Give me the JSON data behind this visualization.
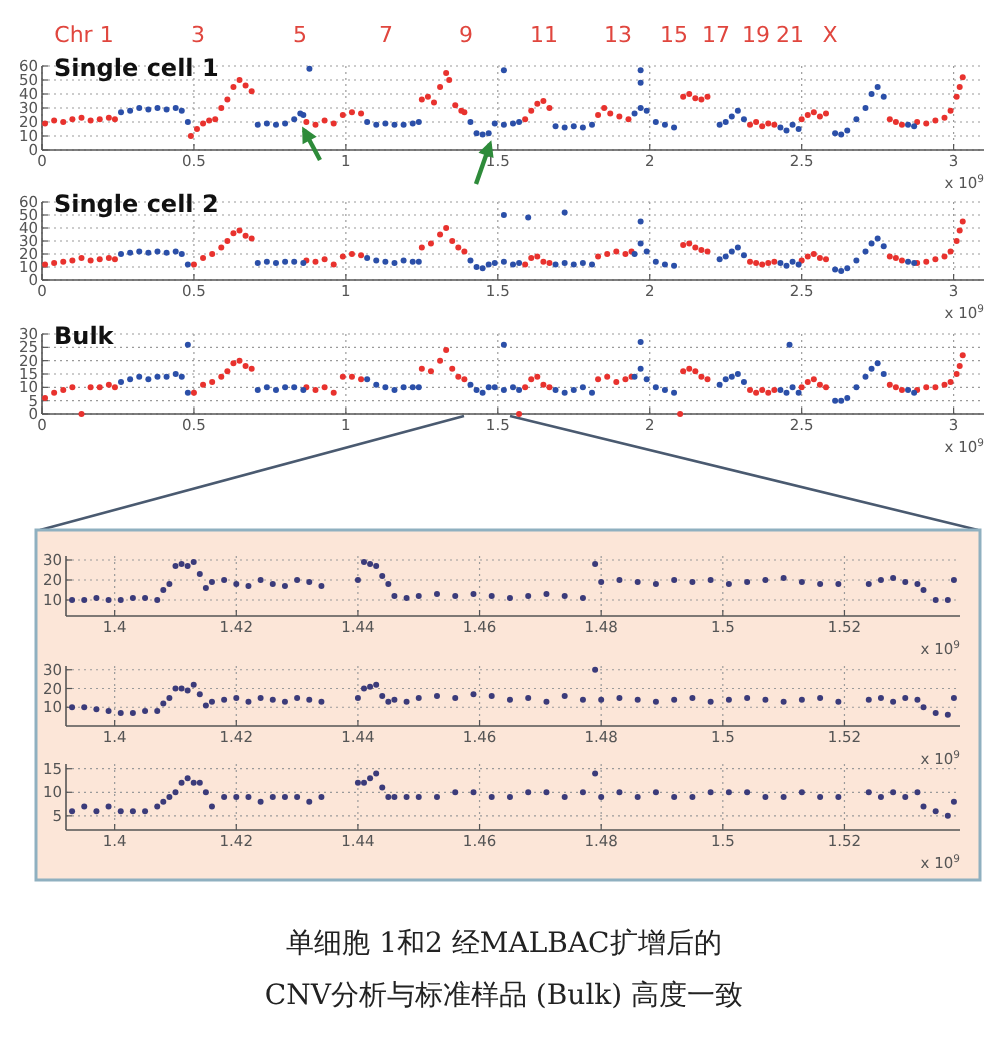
{
  "chart_data": [
    {
      "type": "scatter",
      "title": "Single cell 1",
      "xlabel": "x 10$^{9}$",
      "xlim": [
        0,
        3.1
      ],
      "xticks": [
        0,
        0.5,
        1,
        1.5,
        2,
        2.5,
        3
      ],
      "ylim": [
        0,
        60
      ],
      "yticks": [
        0,
        10,
        20,
        30,
        40,
        50,
        60
      ],
      "grid": true,
      "marker": "circle",
      "annotations": [
        "Chr 1",
        "3",
        "5",
        "7",
        "9",
        "11",
        "13",
        "15",
        "17",
        "19",
        "21",
        "X"
      ],
      "series": [
        {
          "color": "#e8322e",
          "x": [
            0.01,
            0.04,
            0.07,
            0.1,
            0.13,
            0.16,
            0.19,
            0.22,
            0.24,
            0.49,
            0.51,
            0.53,
            0.55,
            0.57,
            0.59,
            0.61,
            0.63,
            0.65,
            0.67,
            0.69,
            0.87,
            0.9,
            0.93,
            0.96,
            0.99,
            1.02,
            1.05,
            1.25,
            1.27,
            1.29,
            1.31,
            1.33,
            1.34,
            1.36,
            1.38,
            1.39,
            1.59,
            1.61,
            1.63,
            1.65,
            1.67,
            1.83,
            1.85,
            1.87,
            1.9,
            1.93,
            2.11,
            2.13,
            2.15,
            2.17,
            2.19,
            2.33,
            2.35,
            2.37,
            2.39,
            2.41,
            2.5,
            2.52,
            2.54,
            2.56,
            2.58,
            2.79,
            2.81,
            2.83,
            2.88,
            2.91,
            2.94,
            2.97,
            2.99,
            3.01,
            3.02,
            3.03
          ],
          "values": [
            19,
            21,
            20,
            22,
            23,
            21,
            22,
            23,
            22,
            10,
            15,
            19,
            21,
            22,
            30,
            36,
            45,
            50,
            46,
            42,
            20,
            18,
            21,
            19,
            25,
            27,
            26,
            36,
            38,
            34,
            45,
            55,
            50,
            32,
            28,
            27,
            22,
            28,
            33,
            35,
            30,
            25,
            30,
            26,
            24,
            22,
            38,
            40,
            37,
            36,
            38,
            18,
            20,
            17,
            19,
            18,
            22,
            25,
            27,
            24,
            26,
            22,
            20,
            18,
            20,
            19,
            21,
            23,
            28,
            38,
            45,
            52
          ]
        },
        {
          "color": "#2b4fa8",
          "x": [
            0.26,
            0.29,
            0.32,
            0.35,
            0.38,
            0.41,
            0.44,
            0.46,
            0.48,
            0.71,
            0.74,
            0.77,
            0.8,
            0.83,
            0.85,
            0.86,
            0.88,
            1.07,
            1.1,
            1.13,
            1.16,
            1.19,
            1.22,
            1.24,
            1.41,
            1.43,
            1.45,
            1.47,
            1.49,
            1.52,
            1.52,
            1.55,
            1.57,
            1.69,
            1.72,
            1.75,
            1.78,
            1.81,
            1.95,
            1.97,
            1.97,
            1.97,
            1.99,
            2.02,
            2.05,
            2.08,
            2.23,
            2.25,
            2.27,
            2.29,
            2.31,
            2.43,
            2.45,
            2.47,
            2.49,
            2.61,
            2.63,
            2.65,
            2.68,
            2.71,
            2.73,
            2.75,
            2.77,
            2.85,
            2.87
          ],
          "values": [
            27,
            28,
            30,
            29,
            30,
            29,
            30,
            28,
            20,
            18,
            19,
            18,
            19,
            22,
            26,
            25,
            58,
            20,
            18,
            19,
            18,
            18,
            19,
            20,
            20,
            12,
            11,
            12,
            19,
            18,
            57,
            19,
            20,
            17,
            16,
            17,
            16,
            18,
            26,
            30,
            48,
            57,
            28,
            20,
            18,
            16,
            18,
            20,
            24,
            28,
            22,
            16,
            14,
            18,
            15,
            12,
            11,
            14,
            22,
            30,
            40,
            45,
            38,
            18,
            17
          ]
        }
      ]
    },
    {
      "type": "scatter",
      "title": "Single cell 2",
      "xlabel": "x 10$^{9}$",
      "xlim": [
        0,
        3.1
      ],
      "xticks": [
        0,
        0.5,
        1,
        1.5,
        2,
        2.5,
        3
      ],
      "ylim": [
        0,
        60
      ],
      "yticks": [
        0,
        10,
        20,
        30,
        40,
        50,
        60
      ],
      "grid": true,
      "marker": "circle",
      "series": [
        {
          "color": "#e8322e",
          "x": [
            0.01,
            0.04,
            0.07,
            0.1,
            0.13,
            0.16,
            0.19,
            0.22,
            0.24,
            0.5,
            0.53,
            0.56,
            0.59,
            0.61,
            0.63,
            0.65,
            0.67,
            0.69,
            0.87,
            0.9,
            0.93,
            0.96,
            0.99,
            1.02,
            1.05,
            1.25,
            1.28,
            1.31,
            1.33,
            1.35,
            1.37,
            1.39,
            1.59,
            1.61,
            1.63,
            1.65,
            1.67,
            1.83,
            1.86,
            1.89,
            1.92,
            1.94,
            2.11,
            2.13,
            2.15,
            2.17,
            2.19,
            2.33,
            2.35,
            2.37,
            2.39,
            2.41,
            2.5,
            2.52,
            2.54,
            2.56,
            2.58,
            2.79,
            2.81,
            2.83,
            2.88,
            2.91,
            2.94,
            2.97,
            2.99,
            3.01,
            3.02,
            3.03
          ],
          "values": [
            12,
            13,
            14,
            15,
            17,
            15,
            16,
            17,
            16,
            12,
            17,
            20,
            25,
            30,
            36,
            38,
            34,
            32,
            15,
            14,
            16,
            12,
            18,
            20,
            19,
            25,
            28,
            35,
            40,
            30,
            25,
            22,
            12,
            17,
            18,
            14,
            13,
            18,
            20,
            22,
            20,
            22,
            27,
            28,
            25,
            23,
            22,
            14,
            13,
            12,
            13,
            14,
            15,
            18,
            20,
            17,
            16,
            18,
            17,
            15,
            13,
            14,
            16,
            18,
            22,
            30,
            38,
            45
          ]
        },
        {
          "color": "#2b4fa8",
          "x": [
            0.26,
            0.29,
            0.32,
            0.35,
            0.38,
            0.41,
            0.44,
            0.46,
            0.48,
            0.71,
            0.74,
            0.77,
            0.8,
            0.83,
            0.86,
            1.07,
            1.1,
            1.13,
            1.16,
            1.19,
            1.22,
            1.24,
            1.41,
            1.43,
            1.45,
            1.47,
            1.49,
            1.52,
            1.52,
            1.55,
            1.57,
            1.6,
            1.69,
            1.72,
            1.72,
            1.75,
            1.78,
            1.81,
            1.95,
            1.97,
            1.97,
            1.99,
            2.02,
            2.05,
            2.08,
            2.23,
            2.25,
            2.27,
            2.29,
            2.31,
            2.43,
            2.45,
            2.47,
            2.49,
            2.61,
            2.63,
            2.65,
            2.68,
            2.71,
            2.73,
            2.75,
            2.77,
            2.85,
            2.87
          ],
          "values": [
            20,
            21,
            22,
            21,
            22,
            21,
            22,
            20,
            12,
            13,
            14,
            13,
            14,
            14,
            13,
            17,
            15,
            14,
            13,
            15,
            14,
            14,
            15,
            10,
            9,
            12,
            13,
            14,
            50,
            12,
            13,
            48,
            12,
            13,
            52,
            12,
            13,
            12,
            20,
            28,
            45,
            22,
            14,
            12,
            11,
            16,
            18,
            22,
            25,
            19,
            13,
            11,
            14,
            12,
            8,
            7,
            9,
            15,
            22,
            28,
            32,
            26,
            14,
            13
          ]
        }
      ]
    },
    {
      "type": "scatter",
      "title": "Bulk",
      "xlabel": "x 10$^{9}$",
      "xlim": [
        0,
        3.1
      ],
      "xticks": [
        0,
        0.5,
        1,
        1.5,
        2,
        2.5,
        3
      ],
      "ylim": [
        0,
        30
      ],
      "yticks": [
        0,
        5,
        10,
        15,
        20,
        25,
        30
      ],
      "grid": true,
      "marker": "circle",
      "series": [
        {
          "color": "#e8322e",
          "x": [
            0.01,
            0.04,
            0.07,
            0.1,
            0.13,
            0.16,
            0.19,
            0.22,
            0.24,
            0.5,
            0.53,
            0.56,
            0.59,
            0.61,
            0.63,
            0.65,
            0.67,
            0.69,
            0.87,
            0.9,
            0.93,
            0.96,
            0.99,
            1.02,
            1.05,
            1.25,
            1.28,
            1.31,
            1.33,
            1.35,
            1.37,
            1.39,
            1.57,
            1.59,
            1.61,
            1.63,
            1.65,
            1.67,
            1.83,
            1.86,
            1.89,
            1.92,
            1.94,
            2.1,
            2.11,
            2.13,
            2.15,
            2.17,
            2.19,
            2.33,
            2.35,
            2.37,
            2.39,
            2.41,
            2.5,
            2.52,
            2.54,
            2.56,
            2.58,
            2.79,
            2.81,
            2.83,
            2.88,
            2.91,
            2.94,
            2.97,
            2.99,
            3.01,
            3.02,
            3.03
          ],
          "values": [
            6,
            8,
            9,
            10,
            0,
            10,
            10,
            11,
            10,
            8,
            11,
            12,
            14,
            16,
            19,
            20,
            18,
            17,
            10,
            9,
            10,
            8,
            14,
            14,
            13,
            17,
            16,
            20,
            24,
            17,
            14,
            13,
            0,
            10,
            13,
            14,
            11,
            10,
            13,
            14,
            12,
            13,
            14,
            0,
            16,
            17,
            16,
            14,
            13,
            9,
            8,
            9,
            8,
            9,
            10,
            12,
            13,
            11,
            10,
            11,
            10,
            9,
            9,
            10,
            10,
            11,
            12,
            15,
            18,
            22
          ]
        },
        {
          "color": "#2b4fa8",
          "x": [
            0.26,
            0.29,
            0.32,
            0.35,
            0.38,
            0.41,
            0.44,
            0.46,
            0.48,
            0.48,
            0.71,
            0.74,
            0.77,
            0.8,
            0.83,
            0.86,
            1.07,
            1.1,
            1.13,
            1.16,
            1.19,
            1.22,
            1.24,
            1.41,
            1.43,
            1.45,
            1.47,
            1.49,
            1.52,
            1.52,
            1.55,
            1.57,
            1.69,
            1.72,
            1.75,
            1.78,
            1.81,
            1.95,
            1.97,
            1.97,
            1.99,
            2.02,
            2.05,
            2.08,
            2.23,
            2.25,
            2.27,
            2.29,
            2.31,
            2.43,
            2.45,
            2.46,
            2.47,
            2.49,
            2.61,
            2.63,
            2.65,
            2.68,
            2.71,
            2.73,
            2.75,
            2.77,
            2.85,
            2.87
          ],
          "values": [
            12,
            13,
            14,
            13,
            14,
            14,
            15,
            14,
            8,
            26,
            9,
            10,
            9,
            10,
            10,
            9,
            13,
            11,
            10,
            9,
            10,
            10,
            10,
            11,
            9,
            8,
            10,
            10,
            9,
            26,
            10,
            9,
            9,
            8,
            9,
            10,
            8,
            14,
            17,
            27,
            13,
            10,
            9,
            8,
            11,
            13,
            14,
            15,
            12,
            9,
            8,
            26,
            10,
            8,
            5,
            5,
            6,
            10,
            14,
            17,
            19,
            15,
            9,
            8
          ]
        }
      ]
    },
    {
      "type": "scatter",
      "xlabel": "x 10$^{9}$",
      "xlim": [
        1.392,
        1.539
      ],
      "xticks": [
        1.4,
        1.42,
        1.44,
        1.46,
        1.48,
        1.5,
        1.52
      ],
      "ylim": [
        2,
        32
      ],
      "yticks": [
        10,
        20,
        30
      ],
      "grid": true,
      "marker": "circle",
      "series": [
        {
          "color": "#3b3b7a",
          "x": [
            1.393,
            1.395,
            1.397,
            1.399,
            1.401,
            1.403,
            1.405,
            1.407,
            1.408,
            1.409,
            1.41,
            1.411,
            1.412,
            1.413,
            1.414,
            1.415,
            1.416,
            1.418,
            1.42,
            1.422,
            1.424,
            1.426,
            1.428,
            1.43,
            1.432,
            1.434,
            1.44,
            1.441,
            1.442,
            1.443,
            1.444,
            1.445,
            1.446,
            1.448,
            1.45,
            1.453,
            1.456,
            1.459,
            1.462,
            1.465,
            1.468,
            1.471,
            1.474,
            1.477,
            1.479,
            1.48,
            1.483,
            1.486,
            1.489,
            1.492,
            1.495,
            1.498,
            1.501,
            1.504,
            1.507,
            1.51,
            1.513,
            1.516,
            1.519,
            1.524,
            1.526,
            1.528,
            1.53,
            1.532,
            1.533,
            1.535,
            1.537,
            1.538
          ],
          "values": [
            10,
            10,
            11,
            10,
            10,
            11,
            11,
            10,
            15,
            18,
            27,
            28,
            27,
            29,
            23,
            16,
            19,
            20,
            18,
            17,
            20,
            18,
            17,
            20,
            19,
            17,
            20,
            29,
            28,
            27,
            22,
            18,
            12,
            11,
            12,
            13,
            12,
            13,
            12,
            11,
            12,
            13,
            12,
            11,
            28,
            19,
            20,
            19,
            18,
            20,
            19,
            20,
            18,
            19,
            20,
            21,
            19,
            18,
            18,
            18,
            20,
            21,
            19,
            18,
            15,
            10,
            10,
            20
          ]
        }
      ]
    },
    {
      "type": "scatter",
      "xlabel": "x 10$^{9}$",
      "xlim": [
        1.392,
        1.539
      ],
      "xticks": [
        1.4,
        1.42,
        1.44,
        1.46,
        1.48,
        1.5,
        1.52
      ],
      "ylim": [
        0,
        32
      ],
      "yticks": [
        10,
        20,
        30
      ],
      "grid": true,
      "marker": "circle",
      "series": [
        {
          "color": "#3b3b7a",
          "x": [
            1.393,
            1.395,
            1.397,
            1.399,
            1.401,
            1.403,
            1.405,
            1.407,
            1.408,
            1.409,
            1.41,
            1.411,
            1.412,
            1.413,
            1.414,
            1.415,
            1.416,
            1.418,
            1.42,
            1.422,
            1.424,
            1.426,
            1.428,
            1.43,
            1.432,
            1.434,
            1.44,
            1.441,
            1.442,
            1.443,
            1.444,
            1.445,
            1.446,
            1.448,
            1.45,
            1.453,
            1.456,
            1.459,
            1.462,
            1.465,
            1.468,
            1.471,
            1.474,
            1.477,
            1.479,
            1.48,
            1.483,
            1.486,
            1.489,
            1.492,
            1.495,
            1.498,
            1.501,
            1.504,
            1.507,
            1.51,
            1.513,
            1.516,
            1.519,
            1.524,
            1.526,
            1.528,
            1.53,
            1.532,
            1.533,
            1.535,
            1.537,
            1.538
          ],
          "values": [
            10,
            10,
            9,
            8,
            7,
            7,
            8,
            8,
            12,
            15,
            20,
            20,
            19,
            22,
            17,
            11,
            13,
            14,
            15,
            13,
            15,
            14,
            13,
            15,
            14,
            13,
            15,
            20,
            21,
            22,
            16,
            13,
            14,
            13,
            15,
            16,
            15,
            17,
            16,
            14,
            15,
            13,
            16,
            14,
            30,
            14,
            15,
            14,
            13,
            14,
            15,
            13,
            14,
            15,
            14,
            13,
            14,
            15,
            13,
            14,
            15,
            13,
            15,
            14,
            10,
            7,
            6,
            15
          ]
        }
      ]
    },
    {
      "type": "scatter",
      "xlabel": "x 10$^{9}$",
      "xlim": [
        1.392,
        1.539
      ],
      "xticks": [
        1.4,
        1.42,
        1.44,
        1.46,
        1.48,
        1.5,
        1.52
      ],
      "ylim": [
        2,
        16
      ],
      "yticks": [
        5,
        10,
        15
      ],
      "grid": true,
      "marker": "circle",
      "series": [
        {
          "color": "#3b3b7a",
          "x": [
            1.393,
            1.395,
            1.397,
            1.399,
            1.401,
            1.403,
            1.405,
            1.407,
            1.408,
            1.409,
            1.41,
            1.411,
            1.412,
            1.413,
            1.414,
            1.415,
            1.416,
            1.418,
            1.42,
            1.422,
            1.424,
            1.426,
            1.428,
            1.43,
            1.432,
            1.434,
            1.44,
            1.441,
            1.442,
            1.443,
            1.444,
            1.445,
            1.446,
            1.448,
            1.45,
            1.453,
            1.456,
            1.459,
            1.462,
            1.465,
            1.468,
            1.471,
            1.474,
            1.477,
            1.479,
            1.48,
            1.483,
            1.486,
            1.489,
            1.492,
            1.495,
            1.498,
            1.501,
            1.504,
            1.507,
            1.51,
            1.513,
            1.516,
            1.519,
            1.524,
            1.526,
            1.528,
            1.53,
            1.532,
            1.533,
            1.535,
            1.537,
            1.538
          ],
          "values": [
            6,
            7,
            6,
            7,
            6,
            6,
            6,
            7,
            8,
            9,
            10,
            12,
            13,
            12,
            12,
            10,
            7,
            9,
            9,
            9,
            8,
            9,
            9,
            9,
            8,
            9,
            12,
            12,
            13,
            14,
            11,
            9,
            9,
            9,
            9,
            9,
            10,
            10,
            9,
            9,
            10,
            10,
            9,
            10,
            14,
            9,
            10,
            9,
            10,
            9,
            9,
            10,
            10,
            10,
            9,
            9,
            10,
            9,
            9,
            10,
            9,
            10,
            9,
            10,
            7,
            6,
            5,
            8
          ]
        }
      ]
    },
    {
      "type": "other",
      "annotations": [
        "单细胞 1和2 经MALBAC扩增后的",
        "CNV分析与标准样品 (Bulk) 高度一致"
      ]
    }
  ]
}
